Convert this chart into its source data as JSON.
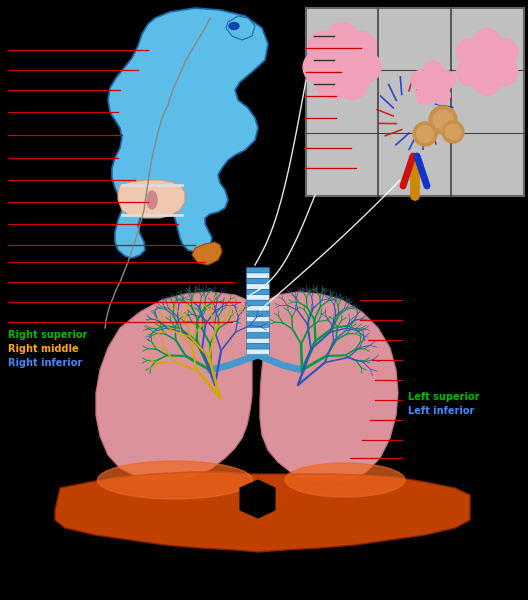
{
  "background_color": "#000000",
  "fig_width": 5.28,
  "fig_height": 6.0,
  "dpi": 100,
  "lobe_labels_left": [
    [
      "Right superior",
      "#00bb00"
    ],
    [
      "Right middle",
      "#ffaa00"
    ],
    [
      "Right inferior",
      "#4488ff"
    ]
  ],
  "lobe_labels_right": [
    [
      "Left superior",
      "#00bb00"
    ],
    [
      "Left inferior",
      "#4488ff"
    ]
  ],
  "colors": {
    "nasal_blue": "#5bbde8",
    "nasal_dark": "#1a6aaa",
    "lung_pink": "#f0a0a8",
    "trachea_blue": "#4499cc",
    "trachea_white": "#ddeeff",
    "bronchi_green": "#009944",
    "bronchi_blue": "#3355bb",
    "bronchi_yellow": "#ccaa00",
    "diaphragm_orange": "#cc4400",
    "diaphragm_light": "#ee6622",
    "inset_bg": "#c8c8c8",
    "line_color": "#cc0000",
    "white": "#ffffff",
    "red_vessel": "#cc1111",
    "blue_vessel": "#1133cc",
    "orange_bronchiole": "#cc8800",
    "pink_alveoli": "#f090a8",
    "tan_alveoli": "#c8904a"
  }
}
